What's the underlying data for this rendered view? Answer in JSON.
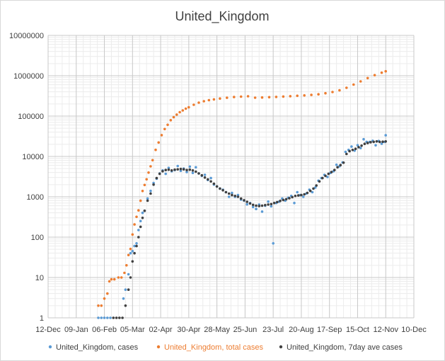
{
  "chart_data": {
    "type": "scatter",
    "title": "United_Kingdom",
    "xlabel": "",
    "ylabel": "",
    "y_scale": "log",
    "ylim": [
      1,
      10000000
    ],
    "xlim": [
      "2019-12-12",
      "2020-12-10"
    ],
    "x_tick_labels": [
      "12-Dec",
      "09-Jan",
      "06-Feb",
      "05-Mar",
      "02-Apr",
      "30-Apr",
      "28-May",
      "25-Jun",
      "23-Jul",
      "20-Aug",
      "17-Sep",
      "15-Oct",
      "12-Nov",
      "10-Dec"
    ],
    "y_tick_labels": [
      "1",
      "10",
      "100",
      "1000",
      "10000",
      "100000",
      "1000000",
      "10000000"
    ],
    "grid": true,
    "legend_position": "bottom",
    "series": [
      {
        "name": "United_Kingdom, cases",
        "color": "#5b9bd5",
        "points": [
          [
            "2020-01-31",
            1
          ],
          [
            "2020-02-03",
            1
          ],
          [
            "2020-02-06",
            1
          ],
          [
            "2020-02-09",
            1
          ],
          [
            "2020-02-12",
            1
          ],
          [
            "2020-02-25",
            3
          ],
          [
            "2020-02-27",
            5
          ],
          [
            "2020-03-01",
            12
          ],
          [
            "2020-03-03",
            40
          ],
          [
            "2020-03-05",
            45
          ],
          [
            "2020-03-07",
            60
          ],
          [
            "2020-03-09",
            70
          ],
          [
            "2020-03-11",
            150
          ],
          [
            "2020-03-13",
            250
          ],
          [
            "2020-03-15",
            400
          ],
          [
            "2020-03-17",
            450
          ],
          [
            "2020-03-20",
            900
          ],
          [
            "2020-03-23",
            1400
          ],
          [
            "2020-03-26",
            2200
          ],
          [
            "2020-03-29",
            2800
          ],
          [
            "2020-04-01",
            3800
          ],
          [
            "2020-04-04",
            4500
          ],
          [
            "2020-04-07",
            3700
          ],
          [
            "2020-04-10",
            5200
          ],
          [
            "2020-04-13",
            4300
          ],
          [
            "2020-04-16",
            4600
          ],
          [
            "2020-04-19",
            5800
          ],
          [
            "2020-04-22",
            4400
          ],
          [
            "2020-04-25",
            5000
          ],
          [
            "2020-04-28",
            4100
          ],
          [
            "2020-05-01",
            5600
          ],
          [
            "2020-05-04",
            3900
          ],
          [
            "2020-05-07",
            5400
          ],
          [
            "2020-05-10",
            3800
          ],
          [
            "2020-05-13",
            3300
          ],
          [
            "2020-05-16",
            3500
          ],
          [
            "2020-05-19",
            2600
          ],
          [
            "2020-05-22",
            2900
          ],
          [
            "2020-05-25",
            2000
          ],
          [
            "2020-05-28",
            1800
          ],
          [
            "2020-05-31",
            1600
          ],
          [
            "2020-06-03",
            1500
          ],
          [
            "2020-06-06",
            1300
          ],
          [
            "2020-06-09",
            1000
          ],
          [
            "2020-06-12",
            1250
          ],
          [
            "2020-06-15",
            1000
          ],
          [
            "2020-06-18",
            1100
          ],
          [
            "2020-06-21",
            850
          ],
          [
            "2020-06-24",
            800
          ],
          [
            "2020-06-27",
            650
          ],
          [
            "2020-06-30",
            700
          ],
          [
            "2020-07-03",
            560
          ],
          [
            "2020-07-06",
            500
          ],
          [
            "2020-07-09",
            640
          ],
          [
            "2020-07-12",
            430
          ],
          [
            "2020-07-15",
            600
          ],
          [
            "2020-07-18",
            760
          ],
          [
            "2020-07-21",
            580
          ],
          [
            "2020-07-23",
            70
          ],
          [
            "2020-07-26",
            700
          ],
          [
            "2020-07-29",
            760
          ],
          [
            "2020-08-01",
            900
          ],
          [
            "2020-08-04",
            800
          ],
          [
            "2020-08-07",
            950
          ],
          [
            "2020-08-10",
            1050
          ],
          [
            "2020-08-13",
            700
          ],
          [
            "2020-08-16",
            1300
          ],
          [
            "2020-08-19",
            1100
          ],
          [
            "2020-08-22",
            1000
          ],
          [
            "2020-08-25",
            1200
          ],
          [
            "2020-08-28",
            1500
          ],
          [
            "2020-08-31",
            1300
          ],
          [
            "2020-09-03",
            1700
          ],
          [
            "2020-09-06",
            2500
          ],
          [
            "2020-09-09",
            2900
          ],
          [
            "2020-09-12",
            3500
          ],
          [
            "2020-09-15",
            3100
          ],
          [
            "2020-09-18",
            3900
          ],
          [
            "2020-09-21",
            4300
          ],
          [
            "2020-09-24",
            6200
          ],
          [
            "2020-09-27",
            5700
          ],
          [
            "2020-09-30",
            7100
          ],
          [
            "2020-10-03",
            13000
          ],
          [
            "2020-10-06",
            14500
          ],
          [
            "2020-10-09",
            17500
          ],
          [
            "2020-10-12",
            13900
          ],
          [
            "2020-10-15",
            18900
          ],
          [
            "2020-10-18",
            16100
          ],
          [
            "2020-10-21",
            26700
          ],
          [
            "2020-10-24",
            23000
          ],
          [
            "2020-10-27",
            22900
          ],
          [
            "2020-10-30",
            24400
          ],
          [
            "2020-11-02",
            18900
          ],
          [
            "2020-11-05",
            24100
          ],
          [
            "2020-11-08",
            20600
          ],
          [
            "2020-11-11",
            22900
          ],
          [
            "2020-11-12",
            33400
          ]
        ]
      },
      {
        "name": "United_Kingdom, total cases",
        "color": "#ed7d31",
        "points": [
          [
            "2020-01-31",
            2
          ],
          [
            "2020-02-03",
            2
          ],
          [
            "2020-02-06",
            3
          ],
          [
            "2020-02-09",
            4
          ],
          [
            "2020-02-11",
            8
          ],
          [
            "2020-02-13",
            9
          ],
          [
            "2020-02-16",
            9
          ],
          [
            "2020-02-20",
            10
          ],
          [
            "2020-02-23",
            10
          ],
          [
            "2020-02-26",
            13
          ],
          [
            "2020-02-28",
            20
          ],
          [
            "2020-03-01",
            36
          ],
          [
            "2020-03-03",
            51
          ],
          [
            "2020-03-05",
            116
          ],
          [
            "2020-03-07",
            206
          ],
          [
            "2020-03-09",
            319
          ],
          [
            "2020-03-11",
            460
          ],
          [
            "2020-03-13",
            798
          ],
          [
            "2020-03-15",
            1391
          ],
          [
            "2020-03-17",
            1960
          ],
          [
            "2020-03-19",
            2716
          ],
          [
            "2020-03-21",
            3983
          ],
          [
            "2020-03-23",
            5683
          ],
          [
            "2020-03-25",
            8077
          ],
          [
            "2020-03-28",
            14543
          ],
          [
            "2020-03-31",
            22141
          ],
          [
            "2020-04-03",
            33718
          ],
          [
            "2020-04-06",
            47806
          ],
          [
            "2020-04-09",
            60733
          ],
          [
            "2020-04-12",
            78991
          ],
          [
            "2020-04-15",
            93873
          ],
          [
            "2020-04-18",
            108692
          ],
          [
            "2020-04-21",
            124743
          ],
          [
            "2020-04-24",
            138078
          ],
          [
            "2020-04-27",
            152840
          ],
          [
            "2020-04-30",
            165221
          ],
          [
            "2020-05-05",
            190584
          ],
          [
            "2020-05-10",
            215260
          ],
          [
            "2020-05-15",
            233151
          ],
          [
            "2020-05-20",
            248293
          ],
          [
            "2020-05-25",
            259559
          ],
          [
            "2020-05-31",
            272826
          ],
          [
            "2020-06-07",
            284868
          ],
          [
            "2020-06-14",
            295889
          ],
          [
            "2020-06-21",
            303110
          ],
          [
            "2020-06-28",
            310250
          ],
          [
            "2020-07-05",
            285416
          ],
          [
            "2020-07-12",
            289603
          ],
          [
            "2020-07-19",
            294066
          ],
          [
            "2020-07-26",
            299426
          ],
          [
            "2020-08-02",
            304695
          ],
          [
            "2020-08-09",
            310825
          ],
          [
            "2020-08-16",
            318484
          ],
          [
            "2020-08-23",
            325642
          ],
          [
            "2020-08-30",
            334467
          ],
          [
            "2020-09-06",
            347152
          ],
          [
            "2020-09-13",
            368504
          ],
          [
            "2020-09-20",
            394257
          ],
          [
            "2020-09-27",
            434969
          ],
          [
            "2020-10-04",
            502978
          ],
          [
            "2020-10-11",
            603716
          ],
          [
            "2020-10-18",
            722409
          ],
          [
            "2020-10-25",
            873800
          ],
          [
            "2020-11-01",
            1034914
          ],
          [
            "2020-11-08",
            1192013
          ],
          [
            "2020-11-12",
            1290195
          ]
        ]
      },
      {
        "name": "United_Kingdom, 7day ave cases",
        "color": "#404040",
        "points": [
          [
            "2020-02-15",
            1
          ],
          [
            "2020-02-18",
            1
          ],
          [
            "2020-02-21",
            1
          ],
          [
            "2020-02-24",
            1
          ],
          [
            "2020-02-27",
            2
          ],
          [
            "2020-03-01",
            5
          ],
          [
            "2020-03-03",
            10
          ],
          [
            "2020-03-05",
            25
          ],
          [
            "2020-03-07",
            40
          ],
          [
            "2020-03-09",
            60
          ],
          [
            "2020-03-11",
            100
          ],
          [
            "2020-03-13",
            180
          ],
          [
            "2020-03-15",
            300
          ],
          [
            "2020-03-17",
            450
          ],
          [
            "2020-03-20",
            800
          ],
          [
            "2020-03-23",
            1200
          ],
          [
            "2020-03-26",
            2000
          ],
          [
            "2020-03-29",
            2900
          ],
          [
            "2020-04-01",
            3700
          ],
          [
            "2020-04-04",
            4300
          ],
          [
            "2020-04-07",
            4600
          ],
          [
            "2020-04-10",
            4700
          ],
          [
            "2020-04-13",
            4500
          ],
          [
            "2020-04-16",
            4700
          ],
          [
            "2020-04-19",
            4800
          ],
          [
            "2020-04-22",
            4900
          ],
          [
            "2020-04-25",
            4800
          ],
          [
            "2020-04-28",
            4600
          ],
          [
            "2020-05-01",
            4700
          ],
          [
            "2020-05-04",
            4500
          ],
          [
            "2020-05-07",
            4200
          ],
          [
            "2020-05-10",
            3800
          ],
          [
            "2020-05-13",
            3400
          ],
          [
            "2020-05-16",
            3000
          ],
          [
            "2020-05-19",
            2700
          ],
          [
            "2020-05-22",
            2400
          ],
          [
            "2020-05-25",
            2100
          ],
          [
            "2020-05-28",
            1800
          ],
          [
            "2020-05-31",
            1600
          ],
          [
            "2020-06-03",
            1450
          ],
          [
            "2020-06-06",
            1300
          ],
          [
            "2020-06-09",
            1200
          ],
          [
            "2020-06-12",
            1100
          ],
          [
            "2020-06-15",
            1050
          ],
          [
            "2020-06-18",
            1000
          ],
          [
            "2020-06-21",
            900
          ],
          [
            "2020-06-24",
            820
          ],
          [
            "2020-06-27",
            750
          ],
          [
            "2020-06-30",
            680
          ],
          [
            "2020-07-03",
            630
          ],
          [
            "2020-07-06",
            600
          ],
          [
            "2020-07-09",
            590
          ],
          [
            "2020-07-12",
            600
          ],
          [
            "2020-07-15",
            620
          ],
          [
            "2020-07-18",
            640
          ],
          [
            "2020-07-21",
            660
          ],
          [
            "2020-07-24",
            700
          ],
          [
            "2020-07-27",
            740
          ],
          [
            "2020-07-30",
            790
          ],
          [
            "2020-08-02",
            830
          ],
          [
            "2020-08-05",
            870
          ],
          [
            "2020-08-08",
            920
          ],
          [
            "2020-08-11",
            980
          ],
          [
            "2020-08-14",
            1050
          ],
          [
            "2020-08-17",
            1080
          ],
          [
            "2020-08-20",
            1100
          ],
          [
            "2020-08-23",
            1150
          ],
          [
            "2020-08-26",
            1250
          ],
          [
            "2020-08-29",
            1400
          ],
          [
            "2020-09-01",
            1600
          ],
          [
            "2020-09-04",
            1900
          ],
          [
            "2020-09-07",
            2400
          ],
          [
            "2020-09-10",
            2900
          ],
          [
            "2020-09-13",
            3300
          ],
          [
            "2020-09-16",
            3700
          ],
          [
            "2020-09-19",
            4100
          ],
          [
            "2020-09-22",
            4600
          ],
          [
            "2020-09-25",
            5400
          ],
          [
            "2020-09-28",
            6100
          ],
          [
            "2020-10-01",
            7000
          ],
          [
            "2020-10-04",
            11500
          ],
          [
            "2020-10-07",
            13500
          ],
          [
            "2020-10-10",
            14500
          ],
          [
            "2020-10-13",
            15500
          ],
          [
            "2020-10-16",
            17000
          ],
          [
            "2020-10-19",
            18500
          ],
          [
            "2020-10-22",
            20500
          ],
          [
            "2020-10-25",
            21500
          ],
          [
            "2020-10-28",
            22500
          ],
          [
            "2020-10-31",
            23000
          ],
          [
            "2020-11-03",
            23500
          ],
          [
            "2020-11-06",
            23000
          ],
          [
            "2020-11-09",
            23200
          ],
          [
            "2020-11-12",
            23500
          ]
        ]
      }
    ]
  }
}
